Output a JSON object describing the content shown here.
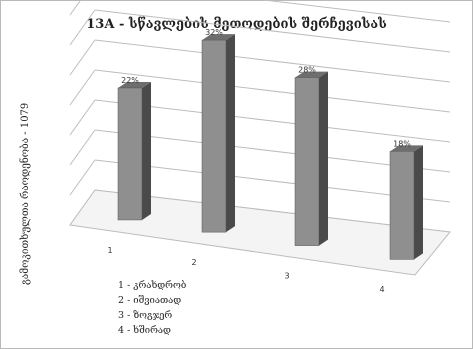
{
  "chart_data": {
    "type": "bar",
    "title": "13A - სწავლების მეთოდების შერჩევისას",
    "ylabel": "გამოკითხულთა რაოდენობა - 1079",
    "categories": [
      "1",
      "2",
      "3",
      "4"
    ],
    "values": [
      22,
      32,
      28,
      18
    ],
    "data_labels": [
      "22%",
      "32%",
      "28%",
      "18%"
    ],
    "ylim": [
      0,
      40
    ],
    "grid": true,
    "legend": [
      "1 - კრახდრობ",
      "2 - იშვიათად",
      "3 - ზოგჯერ",
      "4 - ხშირად"
    ],
    "colors": {
      "bar_front": "#8f8f8f",
      "bar_side": "#4a4a4a",
      "bar_top": "#6e6e6e",
      "grid": "#bdbdbd"
    }
  }
}
